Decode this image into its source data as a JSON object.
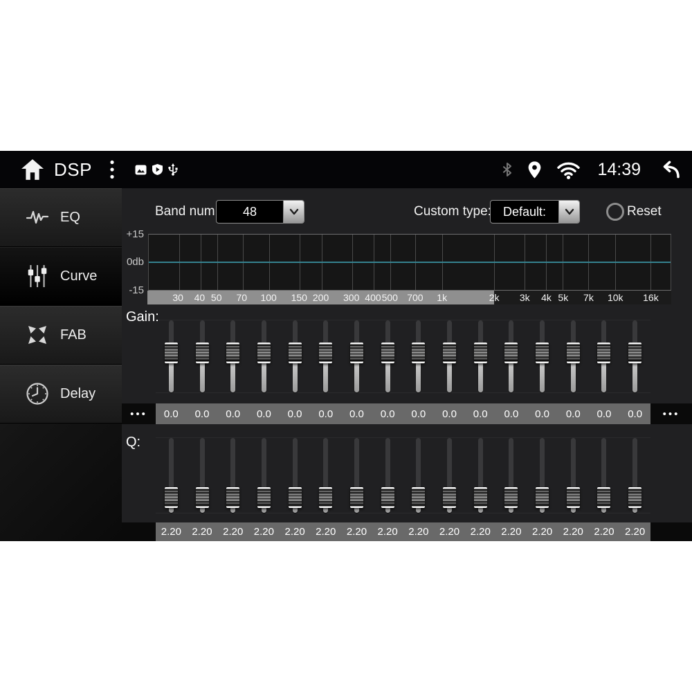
{
  "status_bar": {
    "title": "DSP",
    "time": "14:39",
    "icons": {
      "home": "home-icon",
      "menu": "kebab-menu-icon",
      "gallery": "image-icon",
      "play_protect": "shield-play-icon",
      "usb": "usb-icon",
      "bluetooth": "bluetooth-icon",
      "location": "location-pin-icon",
      "wifi": "wifi-icon",
      "back": "back-icon"
    }
  },
  "sidebar": {
    "items": [
      {
        "label": "EQ",
        "icon": "waveform-icon",
        "active": false
      },
      {
        "label": "Curve",
        "icon": "faders-icon",
        "active": true
      },
      {
        "label": "FAB",
        "icon": "fab-arrows-icon",
        "active": false
      },
      {
        "label": "Delay",
        "icon": "clock-icon",
        "active": false
      }
    ]
  },
  "controls": {
    "band_num_label": "Band num:",
    "band_num_value": "48",
    "custom_type_label": "Custom type:",
    "custom_type_value": "Default:",
    "reset_label": "Reset"
  },
  "eq_graph": {
    "y_labels": [
      "+15",
      "0db",
      "-15"
    ],
    "y_range_db": [
      -15,
      15
    ],
    "curve_db": 0,
    "zero_line_color": "#35828f",
    "scale": {
      "min_hz": 20,
      "max_hz": 21000,
      "highlight_until_hz": 2000
    },
    "freq_ticks": [
      {
        "label": "30",
        "hz": 30
      },
      {
        "label": "40",
        "hz": 40
      },
      {
        "label": "50",
        "hz": 50
      },
      {
        "label": "70",
        "hz": 70
      },
      {
        "label": "100",
        "hz": 100
      },
      {
        "label": "150",
        "hz": 150
      },
      {
        "label": "200",
        "hz": 200
      },
      {
        "label": "300",
        "hz": 300
      },
      {
        "label": "400",
        "hz": 400
      },
      {
        "label": "500",
        "hz": 500
      },
      {
        "label": "700",
        "hz": 700
      },
      {
        "label": "1k",
        "hz": 1000
      },
      {
        "label": "2k",
        "hz": 2000
      },
      {
        "label": "3k",
        "hz": 3000
      },
      {
        "label": "4k",
        "hz": 4000
      },
      {
        "label": "5k",
        "hz": 5000
      },
      {
        "label": "7k",
        "hz": 7000
      },
      {
        "label": "10k",
        "hz": 10000
      },
      {
        "label": "16k",
        "hz": 16000
      }
    ]
  },
  "gain": {
    "label": "Gain:",
    "overflow_left": "•••",
    "overflow_right": "•••",
    "values": [
      "0.0",
      "0.0",
      "0.0",
      "0.0",
      "0.0",
      "0.0",
      "0.0",
      "0.0",
      "0.0",
      "0.0",
      "0.0",
      "0.0",
      "0.0",
      "0.0",
      "0.0",
      "0.0"
    ]
  },
  "q": {
    "label": "Q:",
    "values": [
      "2.20",
      "2.20",
      "2.20",
      "2.20",
      "2.20",
      "2.20",
      "2.20",
      "2.20",
      "2.20",
      "2.20",
      "2.20",
      "2.20",
      "2.20",
      "2.20",
      "2.20",
      "2.20"
    ]
  }
}
